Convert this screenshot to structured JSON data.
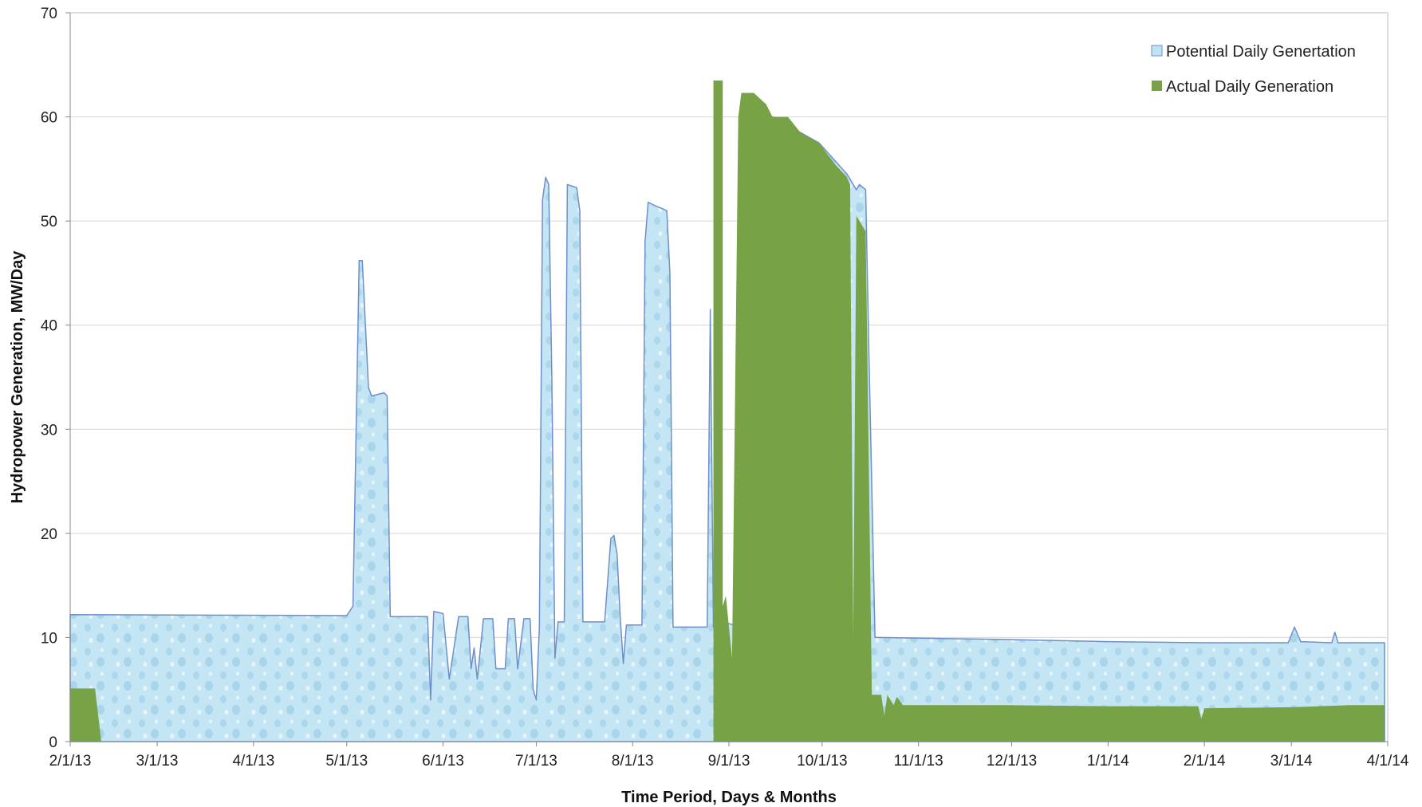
{
  "chart_data": {
    "type": "area",
    "xlabel": "Time Period, Days & Months",
    "ylabel": "Hydropower Generation, MW/Day",
    "x_axis_type": "date",
    "xlim": [
      "2013-02-01",
      "2014-04-01"
    ],
    "ylim": [
      0,
      70
    ],
    "y_ticks": [
      0,
      10,
      20,
      30,
      40,
      50,
      60,
      70
    ],
    "x_ticks": [
      {
        "date": "2013-02-01",
        "label": "2/1/13"
      },
      {
        "date": "2013-03-01",
        "label": "3/1/13"
      },
      {
        "date": "2013-04-01",
        "label": "4/1/13"
      },
      {
        "date": "2013-05-01",
        "label": "5/1/13"
      },
      {
        "date": "2013-06-01",
        "label": "6/1/13"
      },
      {
        "date": "2013-07-01",
        "label": "7/1/13"
      },
      {
        "date": "2013-08-01",
        "label": "8/1/13"
      },
      {
        "date": "2013-09-01",
        "label": "9/1/13"
      },
      {
        "date": "2013-10-01",
        "label": "10/1/13"
      },
      {
        "date": "2013-11-01",
        "label": "11/1/13"
      },
      {
        "date": "2013-12-01",
        "label": "12/1/13"
      },
      {
        "date": "2014-01-01",
        "label": "1/1/14"
      },
      {
        "date": "2014-02-01",
        "label": "2/1/14"
      },
      {
        "date": "2014-03-01",
        "label": "3/1/14"
      },
      {
        "date": "2014-04-01",
        "label": "4/1/14"
      }
    ],
    "grid": true,
    "legend_position": "top-right",
    "series": [
      {
        "name": "Potential Daily Genertation",
        "color": "#bfe3f2",
        "edge_color": "#6f8fc8",
        "points": [
          [
            "2013-02-01",
            12.2
          ],
          [
            "2013-05-01",
            12.1
          ],
          [
            "2013-05-03",
            13
          ],
          [
            "2013-05-05",
            46.2
          ],
          [
            "2013-05-06",
            46.2
          ],
          [
            "2013-05-08",
            34
          ],
          [
            "2013-05-09",
            33.2
          ],
          [
            "2013-05-13",
            33.5
          ],
          [
            "2013-05-14",
            33.2
          ],
          [
            "2013-05-15",
            12
          ],
          [
            "2013-05-27",
            12
          ],
          [
            "2013-05-28",
            4
          ],
          [
            "2013-05-29",
            12.5
          ],
          [
            "2013-06-01",
            12.3
          ],
          [
            "2013-06-03",
            6
          ],
          [
            "2013-06-06",
            12
          ],
          [
            "2013-06-09",
            12
          ],
          [
            "2013-06-10",
            7
          ],
          [
            "2013-06-11",
            9
          ],
          [
            "2013-06-12",
            6
          ],
          [
            "2013-06-14",
            11.8
          ],
          [
            "2013-06-17",
            11.8
          ],
          [
            "2013-06-18",
            7
          ],
          [
            "2013-06-21",
            7
          ],
          [
            "2013-06-22",
            11.8
          ],
          [
            "2013-06-24",
            11.8
          ],
          [
            "2013-06-25",
            7
          ],
          [
            "2013-06-27",
            11.8
          ],
          [
            "2013-06-29",
            11.8
          ],
          [
            "2013-06-30",
            5
          ],
          [
            "2013-07-01",
            4
          ],
          [
            "2013-07-02",
            11
          ],
          [
            "2013-07-03",
            52
          ],
          [
            "2013-07-04",
            54.2
          ],
          [
            "2013-07-05",
            53.5
          ],
          [
            "2013-07-06",
            35
          ],
          [
            "2013-07-07",
            8
          ],
          [
            "2013-07-08",
            11.5
          ],
          [
            "2013-07-10",
            11.5
          ],
          [
            "2013-07-11",
            53.5
          ],
          [
            "2013-07-14",
            53.2
          ],
          [
            "2013-07-15",
            51
          ],
          [
            "2013-07-16",
            11.5
          ],
          [
            "2013-07-23",
            11.5
          ],
          [
            "2013-07-25",
            19.5
          ],
          [
            "2013-07-26",
            19.8
          ],
          [
            "2013-07-27",
            18
          ],
          [
            "2013-07-28",
            12
          ],
          [
            "2013-07-29",
            7.5
          ],
          [
            "2013-07-30",
            11.2
          ],
          [
            "2013-08-04",
            11.2
          ],
          [
            "2013-08-05",
            48
          ],
          [
            "2013-08-06",
            51.8
          ],
          [
            "2013-08-08",
            51.5
          ],
          [
            "2013-08-12",
            51
          ],
          [
            "2013-08-13",
            45
          ],
          [
            "2013-08-14",
            11
          ],
          [
            "2013-08-25",
            11
          ],
          [
            "2013-08-26",
            41.5
          ],
          [
            "2013-08-27",
            11
          ],
          [
            "2013-08-28",
            11
          ],
          [
            "2013-08-30",
            11.5
          ],
          [
            "2013-09-05",
            11
          ],
          [
            "2013-09-06",
            61
          ],
          [
            "2013-09-07",
            61.5
          ],
          [
            "2013-09-15",
            60
          ],
          [
            "2013-09-30",
            57.5
          ],
          [
            "2013-10-09",
            54.5
          ],
          [
            "2013-10-12",
            53
          ],
          [
            "2013-10-13",
            53.5
          ],
          [
            "2013-10-15",
            53
          ],
          [
            "2013-10-16",
            38
          ],
          [
            "2013-10-17",
            24
          ],
          [
            "2013-10-18",
            10
          ],
          [
            "2013-10-19",
            10
          ],
          [
            "2013-12-01",
            9.8
          ],
          [
            "2014-01-01",
            9.6
          ],
          [
            "2014-02-01",
            9.5
          ],
          [
            "2014-02-28",
            9.5
          ],
          [
            "2014-03-02",
            11
          ],
          [
            "2014-03-04",
            9.6
          ],
          [
            "2014-03-14",
            9.5
          ],
          [
            "2014-03-15",
            10.5
          ],
          [
            "2014-03-16",
            9.5
          ],
          [
            "2014-03-30",
            9.5
          ],
          [
            "2014-03-31",
            9.5
          ],
          [
            "2014-03-31",
            0
          ],
          [
            "2013-02-01",
            0
          ]
        ]
      },
      {
        "name": "Actual Daily Generation",
        "color": "#77a246",
        "points": [
          [
            "2013-02-01",
            0
          ],
          [
            "2013-02-01",
            5.1
          ],
          [
            "2013-02-09",
            5.1
          ],
          [
            "2013-02-11",
            0
          ],
          [
            "2013-08-27",
            0
          ],
          [
            "2013-08-27",
            63.5
          ],
          [
            "2013-08-30",
            63.5
          ],
          [
            "2013-08-30",
            13
          ],
          [
            "2013-08-31",
            14
          ],
          [
            "2013-09-02",
            8
          ],
          [
            "2013-09-04",
            60
          ],
          [
            "2013-09-05",
            62.3
          ],
          [
            "2013-09-09",
            62.3
          ],
          [
            "2013-09-13",
            61.2
          ],
          [
            "2013-09-15",
            60
          ],
          [
            "2013-09-20",
            60
          ],
          [
            "2013-09-24",
            58.5
          ],
          [
            "2013-09-30",
            57.5
          ],
          [
            "2013-10-05",
            55.5
          ],
          [
            "2013-10-09",
            54.2
          ],
          [
            "2013-10-10",
            53.5
          ],
          [
            "2013-10-11",
            10
          ],
          [
            "2013-10-12",
            50.5
          ],
          [
            "2013-10-15",
            49
          ],
          [
            "2013-10-17",
            4.5
          ],
          [
            "2013-10-20",
            4.5
          ],
          [
            "2013-10-21",
            2.5
          ],
          [
            "2013-10-22",
            4.5
          ],
          [
            "2013-10-24",
            3.5
          ],
          [
            "2013-10-25",
            4.3
          ],
          [
            "2013-10-27",
            3.5
          ],
          [
            "2013-12-01",
            3.5
          ],
          [
            "2014-01-01",
            3.4
          ],
          [
            "2014-01-30",
            3.4
          ],
          [
            "2014-01-31",
            2.2
          ],
          [
            "2014-02-01",
            3.2
          ],
          [
            "2014-03-01",
            3.3
          ],
          [
            "2014-03-20",
            3.5
          ],
          [
            "2014-03-31",
            3.5
          ],
          [
            "2014-03-31",
            0
          ]
        ]
      }
    ]
  }
}
